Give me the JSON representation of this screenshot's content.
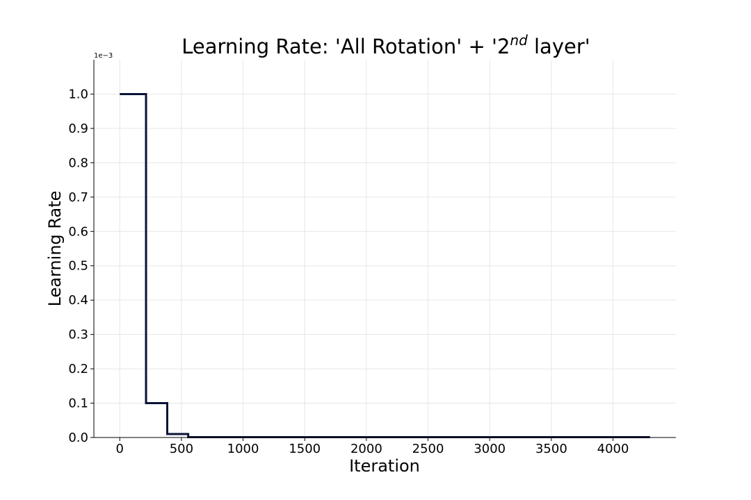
{
  "chart_data": {
    "type": "line",
    "title": {
      "prefix": "Learning Rate: 'All Rotation' + '2",
      "superscript": "nd",
      "suffix": " layer'"
    },
    "xlabel": "Iteration",
    "ylabel": "Learning Rate",
    "y_offset_label": "1e−3",
    "xlim": [
      -210,
      4510
    ],
    "ylim": [
      0,
      1.1
    ],
    "x_ticks": [
      0,
      500,
      1000,
      1500,
      2000,
      2500,
      3000,
      3500,
      4000
    ],
    "x_tick_labels": [
      "0",
      "500",
      "1000",
      "1500",
      "2000",
      "2500",
      "3000",
      "3500",
      "4000"
    ],
    "y_ticks": [
      0.0,
      0.1,
      0.2,
      0.3,
      0.4,
      0.5,
      0.6,
      0.7,
      0.8,
      0.9,
      1.0
    ],
    "y_tick_labels": [
      "0.0",
      "0.1",
      "0.2",
      "0.3",
      "0.4",
      "0.5",
      "0.6",
      "0.7",
      "0.8",
      "0.9",
      "1.0"
    ],
    "grid": true,
    "legend": "none",
    "series": [
      {
        "step": "post",
        "color": "#0b1236",
        "x": [
          0,
          213,
          385,
          555,
          4300
        ],
        "y": [
          1.0,
          0.1,
          0.01,
          0.001,
          0.001
        ]
      }
    ]
  }
}
